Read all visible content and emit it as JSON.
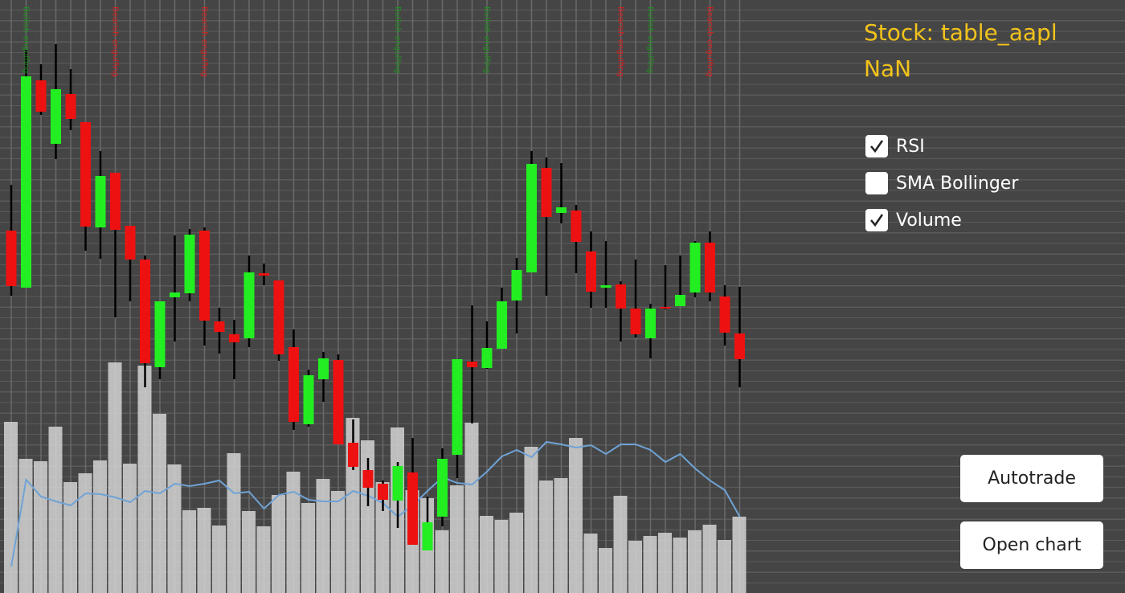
{
  "chart_data": {
    "type": "candlestick",
    "ylim": [
      0,
      738
    ],
    "up_color": "#22ee22",
    "down_color": "#ee1111",
    "open": [
      451,
      380,
      638,
      559,
      621,
      586,
      455,
      523,
      457,
      415,
      281,
      368,
      373,
      451,
      338,
      322,
      317,
      398,
      389,
      306,
      210,
      266,
      290,
      187,
      153,
      136,
      115,
      150,
      53,
      95,
      172,
      288,
      280,
      304,
      364,
      399,
      529,
      473,
      476,
      425,
      380,
      384,
      354,
      317,
      356,
      357,
      374,
      436,
      369,
      323
    ],
    "close": [
      382,
      643,
      599,
      627,
      590,
      456,
      519,
      452,
      415,
      286,
      363,
      374,
      446,
      339,
      325,
      312,
      399,
      395,
      297,
      213,
      271,
      292,
      185,
      157,
      131,
      116,
      158,
      60,
      88,
      167,
      291,
      281,
      305,
      363,
      402,
      534,
      468,
      480,
      437,
      375,
      383,
      354,
      322,
      354,
      354,
      371,
      436,
      374,
      324,
      291
    ],
    "high": [
      508,
      676,
      658,
      683,
      652,
      586,
      550,
      523,
      457,
      420,
      363,
      445,
      453,
      455,
      355,
      340,
      420,
      410,
      389,
      328,
      278,
      300,
      297,
      216,
      168,
      140,
      163,
      193,
      120,
      180,
      291,
      358,
      338,
      380,
      417,
      550,
      542,
      535,
      483,
      450,
      438,
      388,
      415,
      360,
      408,
      420,
      438,
      450,
      383,
      381
    ],
    "low": [
      370,
      380,
      595,
      540,
      576,
      426,
      416,
      343,
      363,
      256,
      266,
      313,
      363,
      308,
      298,
      266,
      306,
      383,
      289,
      203,
      207,
      238,
      185,
      153,
      108,
      102,
      81,
      60,
      53,
      83,
      143,
      211,
      279,
      304,
      323,
      399,
      370,
      460,
      398,
      355,
      355,
      313,
      318,
      292,
      353,
      357,
      368,
      363,
      308,
      256
    ],
    "volume": {
      "color": "#d4d4d4",
      "values": [
        213,
        167,
        164,
        207,
        138,
        149,
        165,
        287,
        161,
        283,
        223,
        160,
        103,
        106,
        84,
        174,
        102,
        83,
        122,
        151,
        112,
        142,
        127,
        218,
        190,
        138,
        206,
        128,
        118,
        78,
        134,
        212,
        96,
        91,
        100,
        182,
        140,
        143,
        193,
        74,
        56,
        121,
        65,
        71,
        75,
        69,
        78,
        85,
        66,
        95
      ]
    },
    "rsi": {
      "color": "#6fa3d6",
      "values": [
        33,
        141,
        120,
        114,
        109,
        124,
        123,
        119,
        113,
        127,
        124,
        136,
        133,
        136,
        140,
        124,
        126,
        105,
        122,
        126,
        116,
        114,
        114,
        127,
        121,
        112,
        95,
        109,
        127,
        144,
        137,
        135,
        151,
        170,
        178,
        169,
        188,
        185,
        181,
        184,
        173,
        185,
        185,
        178,
        163,
        173,
        155,
        140,
        128,
        95
      ]
    },
    "patterns": [
      null,
      {
        "text": "Bullish engulfing",
        "color": "#1f8f1f"
      },
      null,
      null,
      null,
      null,
      null,
      {
        "text": "Bearish engulfing",
        "color": "#d42020"
      },
      null,
      null,
      null,
      null,
      null,
      {
        "text": "Bearish engulfing",
        "color": "#d42020"
      },
      null,
      null,
      null,
      null,
      null,
      null,
      null,
      null,
      null,
      null,
      null,
      null,
      {
        "text": "Bullish engulfing",
        "color": "#1f8f1f"
      },
      null,
      null,
      null,
      null,
      null,
      {
        "text": "Bullish engulfing",
        "color": "#1f8f1f"
      },
      null,
      null,
      null,
      null,
      null,
      null,
      null,
      null,
      {
        "text": "Bearish engulfing",
        "color": "#d42020"
      },
      null,
      {
        "text": "Bullish engulfing",
        "color": "#1f8f1f"
      },
      null,
      null,
      null,
      {
        "text": "Bearish engulfing",
        "color": "#d42020"
      },
      null,
      null
    ]
  },
  "panel": {
    "stock_label": "Stock: table_aapl",
    "value_label": "NaN",
    "checkboxes": [
      {
        "label": "RSI",
        "checked": true
      },
      {
        "label": "SMA Bollinger",
        "checked": false
      },
      {
        "label": "Volume",
        "checked": true
      }
    ],
    "buttons": [
      "Autotrade",
      "Open chart"
    ]
  }
}
